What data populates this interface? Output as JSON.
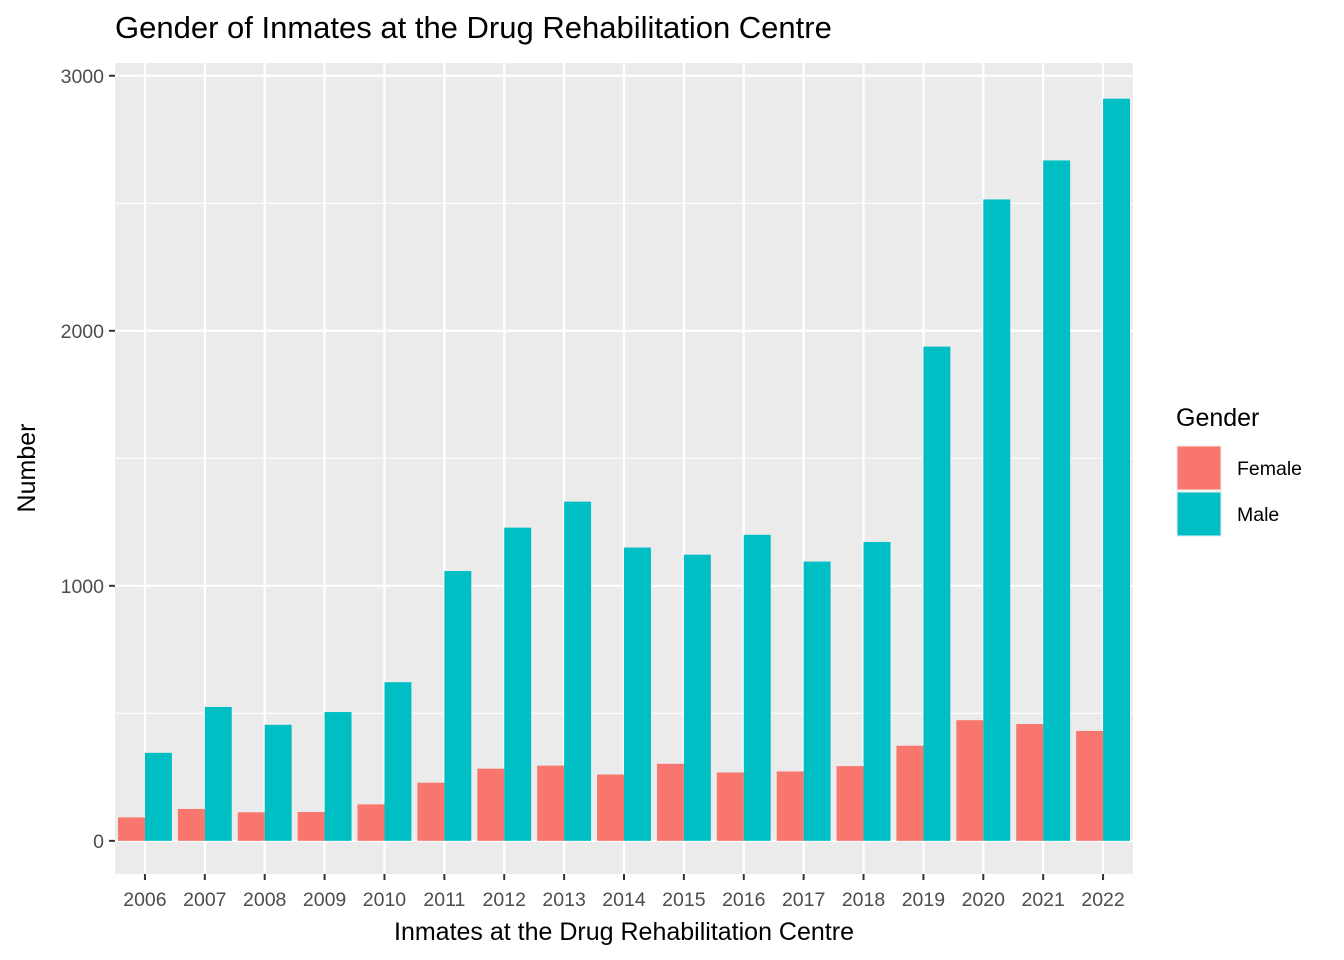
{
  "chart_data": {
    "type": "bar",
    "title": "Gender of Inmates at the Drug Rehabilitation Centre",
    "xlabel": "Inmates at the Drug Rehabilitation Centre",
    "ylabel": "Number",
    "categories": [
      "2006",
      "2007",
      "2008",
      "2009",
      "2010",
      "2011",
      "2012",
      "2013",
      "2014",
      "2015",
      "2016",
      "2017",
      "2018",
      "2019",
      "2020",
      "2021",
      "2022"
    ],
    "series": [
      {
        "name": "Female",
        "color": "#F8766D",
        "values": [
          92,
          125,
          112,
          113,
          143,
          228,
          283,
          295,
          260,
          302,
          268,
          272,
          293,
          373,
          473,
          458,
          431
        ]
      },
      {
        "name": "Male",
        "color": "#00BFC4",
        "values": [
          345,
          525,
          455,
          505,
          622,
          1058,
          1228,
          1330,
          1150,
          1122,
          1200,
          1095,
          1172,
          1938,
          2515,
          2668,
          2910
        ]
      }
    ],
    "ylim": [
      -130,
      3050
    ],
    "yticks": [
      0,
      1000,
      2000,
      3000
    ],
    "yticks_minor": [
      500,
      1500,
      2500
    ],
    "grid": true,
    "legend": {
      "title": "Gender",
      "position": "right"
    },
    "panel_background": "#EBEBEB"
  }
}
